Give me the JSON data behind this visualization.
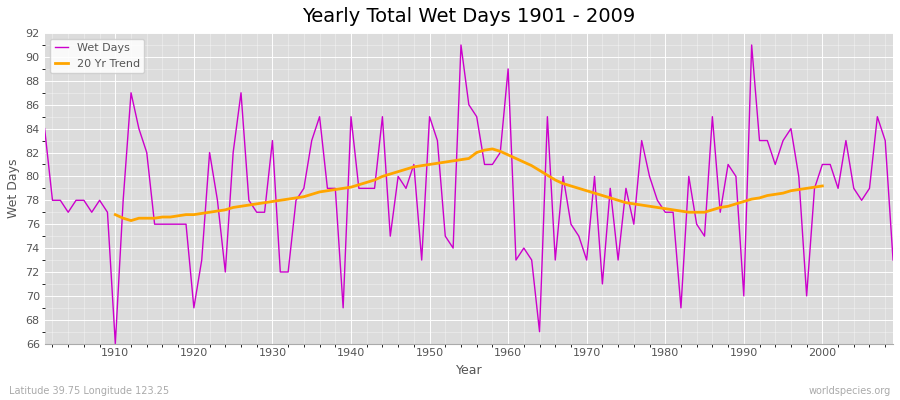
{
  "title": "Yearly Total Wet Days 1901 - 2009",
  "xlabel": "Year",
  "ylabel": "Wet Days",
  "subtitle": "Latitude 39.75 Longitude 123.25",
  "watermark": "worldspecies.org",
  "legend": [
    "Wet Days",
    "20 Yr Trend"
  ],
  "wet_days_color": "#cc00cc",
  "trend_color": "#ffa500",
  "background_color": "#dcdcdc",
  "fig_bg_color": "#ffffff",
  "ylim": [
    66,
    92
  ],
  "xlim": [
    1901,
    2009
  ],
  "years": [
    1901,
    1902,
    1903,
    1904,
    1905,
    1906,
    1907,
    1908,
    1909,
    1910,
    1911,
    1912,
    1913,
    1914,
    1915,
    1916,
    1917,
    1918,
    1919,
    1920,
    1921,
    1922,
    1923,
    1924,
    1925,
    1926,
    1927,
    1928,
    1929,
    1930,
    1931,
    1932,
    1933,
    1934,
    1935,
    1936,
    1937,
    1938,
    1939,
    1940,
    1941,
    1942,
    1943,
    1944,
    1945,
    1946,
    1947,
    1948,
    1949,
    1950,
    1951,
    1952,
    1953,
    1954,
    1955,
    1956,
    1957,
    1958,
    1959,
    1960,
    1961,
    1962,
    1963,
    1964,
    1965,
    1966,
    1967,
    1968,
    1969,
    1970,
    1971,
    1972,
    1973,
    1974,
    1975,
    1976,
    1977,
    1978,
    1979,
    1980,
    1981,
    1982,
    1983,
    1984,
    1985,
    1986,
    1987,
    1988,
    1989,
    1990,
    1991,
    1992,
    1993,
    1994,
    1995,
    1996,
    1997,
    1998,
    1999,
    2000,
    2001,
    2002,
    2003,
    2004,
    2005,
    2006,
    2007,
    2008,
    2009
  ],
  "wet_days": [
    84,
    78,
    78,
    77,
    78,
    78,
    77,
    78,
    77,
    66,
    78,
    87,
    84,
    82,
    76,
    76,
    76,
    76,
    76,
    69,
    73,
    82,
    78,
    72,
    82,
    87,
    78,
    77,
    77,
    83,
    72,
    72,
    78,
    79,
    83,
    85,
    79,
    79,
    69,
    85,
    79,
    79,
    79,
    85,
    75,
    80,
    79,
    81,
    73,
    85,
    83,
    75,
    74,
    91,
    86,
    85,
    81,
    81,
    82,
    89,
    73,
    74,
    73,
    67,
    85,
    73,
    80,
    76,
    75,
    73,
    80,
    71,
    79,
    73,
    79,
    76,
    83,
    80,
    78,
    77,
    77,
    69,
    80,
    76,
    75,
    85,
    77,
    81,
    80,
    70,
    91,
    83,
    83,
    81,
    83,
    84,
    80,
    70,
    79,
    81,
    81,
    79,
    83,
    79,
    78,
    79,
    85,
    83,
    73
  ],
  "trend_years": [
    1910,
    1911,
    1912,
    1913,
    1914,
    1915,
    1916,
    1917,
    1918,
    1919,
    1920,
    1921,
    1922,
    1923,
    1924,
    1925,
    1926,
    1927,
    1928,
    1929,
    1930,
    1931,
    1932,
    1933,
    1934,
    1935,
    1936,
    1937,
    1938,
    1939,
    1940,
    1941,
    1942,
    1943,
    1944,
    1945,
    1946,
    1947,
    1948,
    1949,
    1950,
    1951,
    1952,
    1953,
    1954,
    1955,
    1956,
    1957,
    1958,
    1959,
    1960,
    1961,
    1962,
    1963,
    1964,
    1965,
    1966,
    1967,
    1968,
    1969,
    1970,
    1971,
    1972,
    1973,
    1974,
    1975,
    1976,
    1977,
    1978,
    1979,
    1980,
    1981,
    1982,
    1983,
    1984,
    1985,
    1986,
    1987,
    1988,
    1989,
    1990,
    1991,
    1992,
    1993,
    1994,
    1995,
    1996,
    1997,
    1998,
    1999,
    2000
  ],
  "trend_vals": [
    76.8,
    76.5,
    76.3,
    76.5,
    76.5,
    76.5,
    76.6,
    76.6,
    76.7,
    76.8,
    76.8,
    76.9,
    77.0,
    77.1,
    77.2,
    77.4,
    77.5,
    77.6,
    77.7,
    77.8,
    77.9,
    78.0,
    78.1,
    78.2,
    78.3,
    78.5,
    78.7,
    78.8,
    78.9,
    79.0,
    79.1,
    79.3,
    79.5,
    79.7,
    80.0,
    80.2,
    80.4,
    80.6,
    80.8,
    80.9,
    81.0,
    81.1,
    81.2,
    81.3,
    81.4,
    81.5,
    82.0,
    82.2,
    82.3,
    82.1,
    81.8,
    81.5,
    81.2,
    80.9,
    80.5,
    80.1,
    79.7,
    79.4,
    79.2,
    79.0,
    78.8,
    78.6,
    78.4,
    78.2,
    78.0,
    77.8,
    77.7,
    77.6,
    77.5,
    77.4,
    77.3,
    77.2,
    77.1,
    77.0,
    77.0,
    77.0,
    77.2,
    77.4,
    77.5,
    77.7,
    77.9,
    78.1,
    78.2,
    78.4,
    78.5,
    78.6,
    78.8,
    78.9,
    79.0,
    79.1,
    79.2
  ],
  "title_fontsize": 14,
  "axis_label_fontsize": 9,
  "tick_fontsize": 8,
  "legend_fontsize": 8
}
